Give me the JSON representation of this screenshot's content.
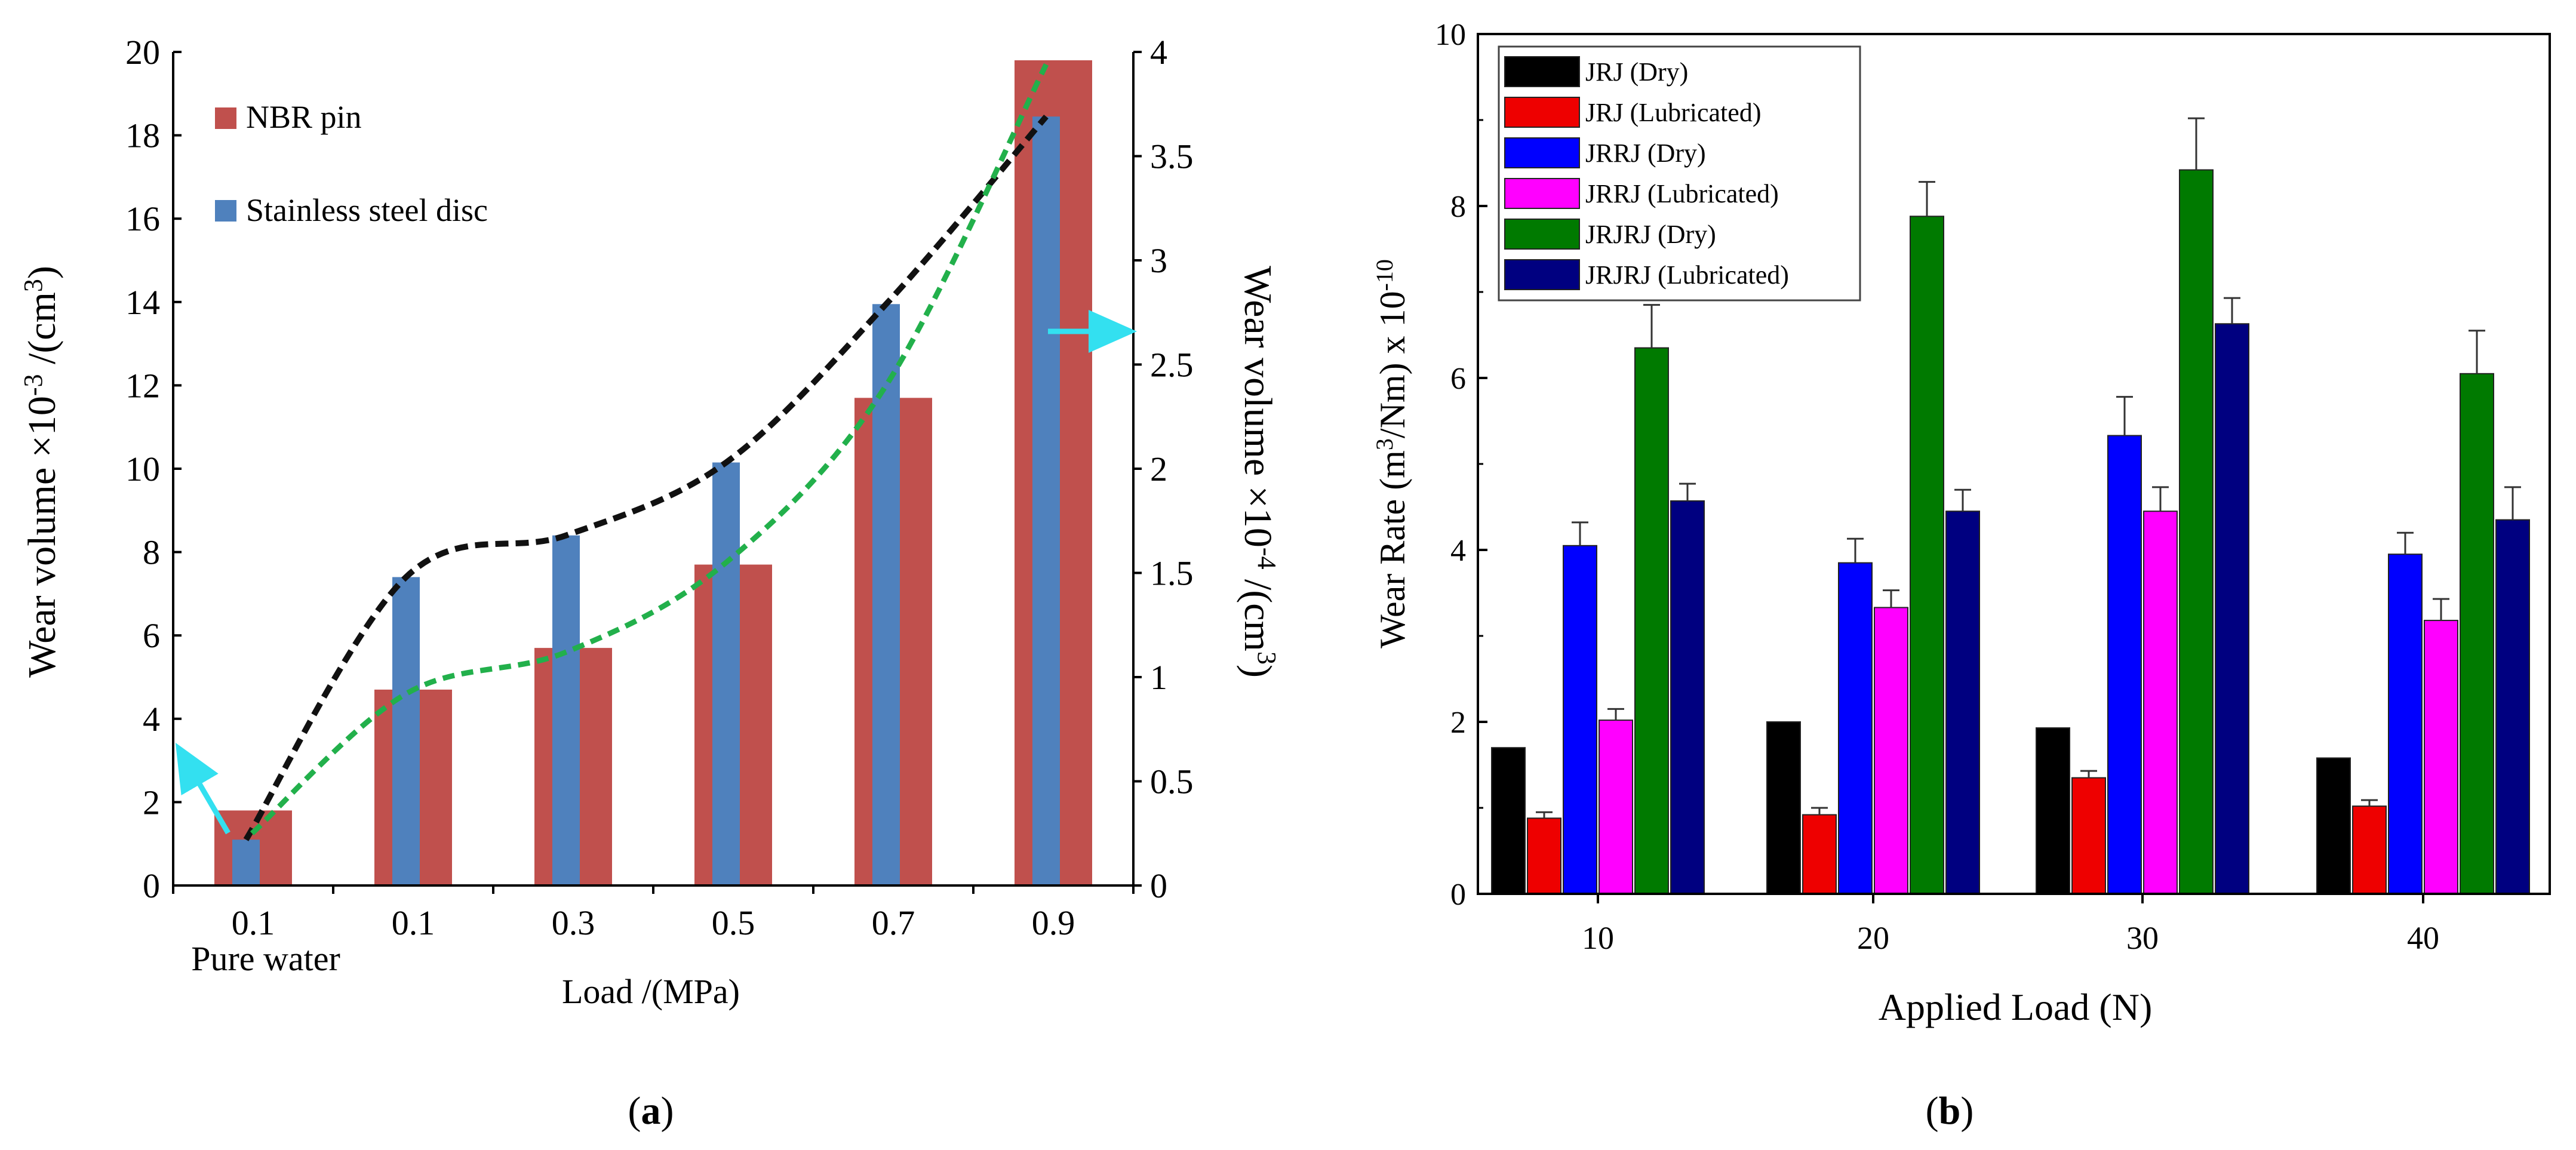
{
  "colors": {
    "nbr_pin": "#C0504D",
    "steel_disc": "#4F81BD",
    "black_curve": "#111111",
    "green_curve": "#22B04B",
    "arrow": "#33E0F0",
    "jrj_dry": "#000000",
    "jrj_lub": "#EE0000",
    "jrrj_dry": "#0000FF",
    "jrrj_lub": "#FF00FF",
    "jrjrj_dry": "#007A00",
    "jrjrj_lub": "#000080"
  },
  "chart_data": [
    {
      "type": "bar",
      "panel_label": "(a)",
      "panel_letter": "a",
      "categories": [
        "0.1",
        "0.1",
        "0.3",
        "0.5",
        "0.7",
        "0.9"
      ],
      "category_sublabel": "Pure water",
      "xlabel": "Load /(MPa)",
      "ylabel_left": "Wear volume  ×10-3 /(cm3)",
      "ylabel_right": "Wear volume  ×10-4 /(cm3)",
      "ylim_left": [
        0,
        20
      ],
      "ylim_right": [
        0,
        4
      ],
      "yticks_left": [
        "0",
        "2",
        "4",
        "6",
        "8",
        "10",
        "12",
        "14",
        "16",
        "18",
        "20"
      ],
      "yticks_right": [
        "0",
        "0.5",
        "1",
        "1.5",
        "2",
        "2.5",
        "3",
        "3.5",
        "4"
      ],
      "legend_position": "top-left",
      "series": [
        {
          "name": "NBR pin",
          "axis": "left",
          "values": [
            1.8,
            4.7,
            5.7,
            7.7,
            11.7,
            19.8
          ]
        },
        {
          "name": "Stainless steel disc",
          "axis": "right",
          "values": [
            0.22,
            1.48,
            1.68,
            2.03,
            2.79,
            3.69
          ]
        }
      ],
      "trend_black": [
        0.22,
        1.48,
        1.68,
        2.03,
        2.79,
        3.69
      ],
      "trend_green": [
        0.25,
        0.92,
        1.12,
        1.55,
        2.4,
        3.94
      ]
    },
    {
      "type": "bar",
      "panel_label": "(b)",
      "panel_letter": "b",
      "categories": [
        "10",
        "20",
        "30",
        "40"
      ],
      "xlabel": "Applied Load (N)",
      "ylabel": "Wear Rate (m3/Nm) x 10-10",
      "ylim": [
        0,
        10
      ],
      "yticks": [
        "0",
        "2",
        "4",
        "6",
        "8",
        "10"
      ],
      "legend_position": "top-left",
      "series": [
        {
          "name": "JRJ (Dry)",
          "values": [
            1.7,
            2.0,
            1.93,
            1.58
          ],
          "errors": [
            0.0,
            0.0,
            0.0,
            0.0
          ]
        },
        {
          "name": "JRJ (Lubricated)",
          "values": [
            0.88,
            0.92,
            1.35,
            1.02
          ],
          "errors": [
            0.07,
            0.08,
            0.08,
            0.07
          ]
        },
        {
          "name": "JRRJ (Dry)",
          "values": [
            4.05,
            3.85,
            5.33,
            3.95
          ],
          "errors": [
            0.27,
            0.28,
            0.45,
            0.25
          ]
        },
        {
          "name": "JRRJ (Lubricated)",
          "values": [
            2.02,
            3.33,
            4.45,
            3.18
          ],
          "errors": [
            0.13,
            0.2,
            0.28,
            0.25
          ]
        },
        {
          "name": "JRJRJ (Dry)",
          "values": [
            6.35,
            7.88,
            8.42,
            6.05
          ],
          "errors": [
            0.5,
            0.4,
            0.6,
            0.5
          ]
        },
        {
          "name": "JRJRJ (Lubricated)",
          "values": [
            4.57,
            4.45,
            6.63,
            4.35
          ],
          "errors": [
            0.2,
            0.25,
            0.3,
            0.38
          ]
        }
      ]
    }
  ]
}
